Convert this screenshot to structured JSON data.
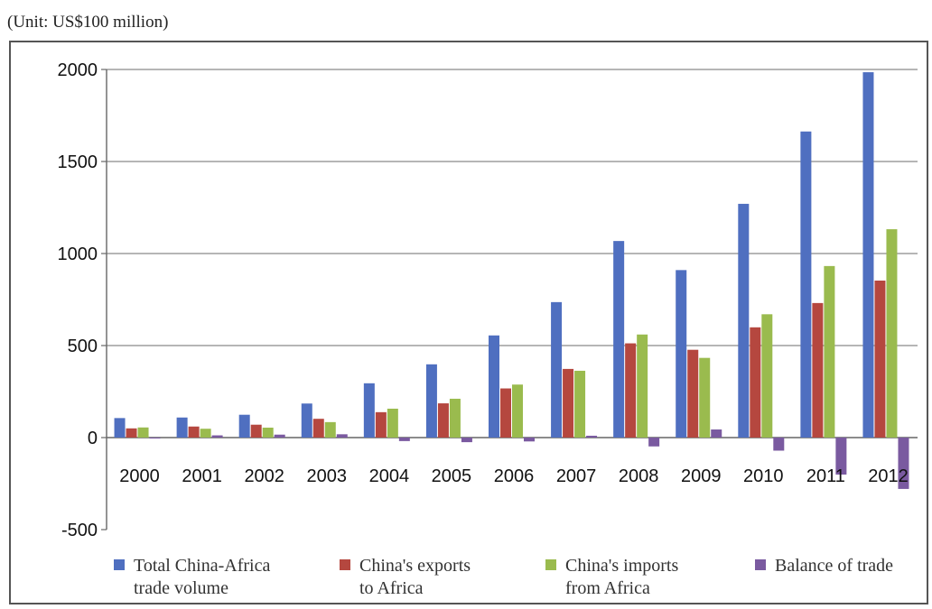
{
  "unit_note": "(Unit: US$100 million)",
  "chart_data": {
    "type": "bar",
    "title": "",
    "xlabel": "",
    "ylabel": "",
    "ylim": [
      -500,
      2000
    ],
    "yticks": [
      2000,
      1500,
      1000,
      500,
      0,
      -500
    ],
    "grid": true,
    "legend_position": "bottom",
    "categories": [
      "2000",
      "2001",
      "2002",
      "2003",
      "2004",
      "2005",
      "2006",
      "2007",
      "2008",
      "2009",
      "2010",
      "2011",
      "2012"
    ],
    "series": [
      {
        "name": "Total China-Africa trade volume",
        "legend_lines": [
          "Total China-Africa",
          "trade volume"
        ],
        "color": "#4f6fc0",
        "values": [
          106,
          109,
          124,
          185,
          295,
          398,
          555,
          736,
          1068,
          910,
          1270,
          1663,
          1985
        ]
      },
      {
        "name": "China's exports to Africa",
        "legend_lines": [
          "China's exports",
          "to Africa"
        ],
        "color": "#b5473f",
        "values": [
          50,
          60,
          70,
          102,
          138,
          186,
          267,
          373,
          512,
          477,
          599,
          731,
          853
        ]
      },
      {
        "name": "China's imports from Africa",
        "legend_lines": [
          "China's imports",
          "from Africa"
        ],
        "color": "#9abb4e",
        "values": [
          55,
          48,
          54,
          84,
          157,
          211,
          288,
          363,
          560,
          433,
          670,
          932,
          1132
        ]
      },
      {
        "name": "Balance of trade",
        "legend_lines": [
          "Balance of trade"
        ],
        "color": "#7a5aa0",
        "values": [
          -5,
          12,
          16,
          18,
          -19,
          -25,
          -21,
          10,
          -48,
          44,
          -71,
          -201,
          -279
        ]
      }
    ]
  }
}
